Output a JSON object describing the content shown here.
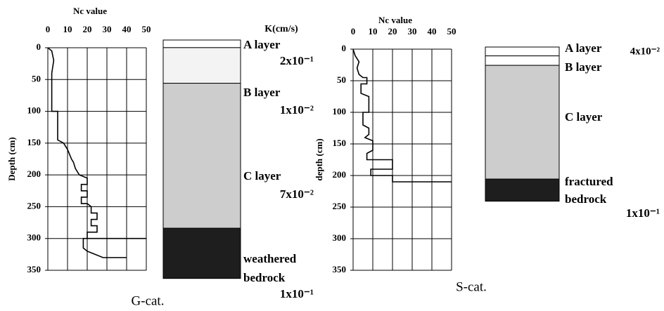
{
  "chart_data": [
    {
      "type": "line",
      "title": "G-cat.",
      "xlabel": "Nc value",
      "ylabel": "Depth (cm)",
      "k_header": "K(cm/s)",
      "xlim": [
        0,
        50
      ],
      "xticks": [
        0,
        10,
        20,
        30,
        40,
        50
      ],
      "ylim": [
        0,
        350
      ],
      "yticks": [
        0,
        50,
        100,
        150,
        200,
        250,
        300,
        350
      ],
      "grid": true,
      "series": [
        {
          "color": "#000000",
          "x": [
            0,
            2,
            3,
            2,
            2,
            2,
            5,
            5,
            8,
            10,
            12,
            13,
            14,
            16,
            20,
            20,
            17,
            17,
            20,
            20,
            17,
            17,
            20,
            22,
            22,
            25,
            25,
            22,
            22,
            25,
            25,
            20,
            20,
            50,
            18,
            18,
            20,
            28,
            40
          ],
          "values": [
            0,
            5,
            20,
            40,
            70,
            100,
            100,
            145,
            150,
            160,
            175,
            180,
            190,
            200,
            205,
            215,
            215,
            225,
            225,
            235,
            235,
            245,
            245,
            250,
            260,
            260,
            270,
            270,
            280,
            280,
            290,
            290,
            300,
            300,
            300,
            315,
            320,
            330,
            330
          ]
        }
      ],
      "layers": [
        {
          "name": [
            "A layer"
          ],
          "k": "2x10⁻¹",
          "range": [
            0,
            12
          ],
          "color": "#ffffff"
        },
        {
          "name": [
            "B layer"
          ],
          "k": "1x10⁻²",
          "range": [
            12,
            68
          ],
          "color": "#f3f3f3"
        },
        {
          "name": [
            "C layer"
          ],
          "k": "7x10⁻²",
          "range": [
            68,
            296
          ],
          "color": "#cdcdcd"
        },
        {
          "name": [
            "weathered",
            "bedrock"
          ],
          "k": "1x10⁻¹",
          "range": [
            296,
            375
          ],
          "color": "#1e1e1e"
        }
      ]
    },
    {
      "type": "line",
      "title": "S-cat.",
      "xlabel": "Nc value",
      "ylabel": "depth (cm)",
      "xlim": [
        0,
        50
      ],
      "xticks": [
        0,
        10,
        20,
        30,
        40,
        50
      ],
      "ylim": [
        0,
        350
      ],
      "yticks": [
        0,
        50,
        100,
        150,
        200,
        250,
        300,
        350
      ],
      "grid": true,
      "series": [
        {
          "color": "#000000",
          "x": [
            0,
            1,
            3,
            2,
            3,
            5,
            7,
            7,
            4,
            4,
            8,
            8,
            5,
            5,
            8,
            8,
            6,
            10,
            10,
            7,
            7,
            20,
            20,
            9,
            9,
            20,
            20,
            50
          ],
          "values": [
            0,
            10,
            20,
            30,
            40,
            45,
            45,
            55,
            55,
            70,
            75,
            100,
            100,
            120,
            125,
            135,
            140,
            145,
            160,
            165,
            175,
            175,
            190,
            190,
            200,
            200,
            210,
            210
          ]
        }
      ],
      "layers": [
        {
          "name": [
            "A layer"
          ],
          "k": "4x10⁻²",
          "range": [
            0,
            14
          ],
          "color": "#ffffff"
        },
        {
          "name": [
            "B layer"
          ],
          "range": [
            14,
            29
          ],
          "color": "#ffffff"
        },
        {
          "name": [
            "C layer"
          ],
          "range": [
            29,
            209
          ],
          "color": "#cdcdcd"
        },
        {
          "name": [
            "fractured",
            "bedrock"
          ],
          "k": "1x10⁻¹",
          "range": [
            209,
            244
          ],
          "color": "#1e1e1e"
        }
      ]
    }
  ]
}
